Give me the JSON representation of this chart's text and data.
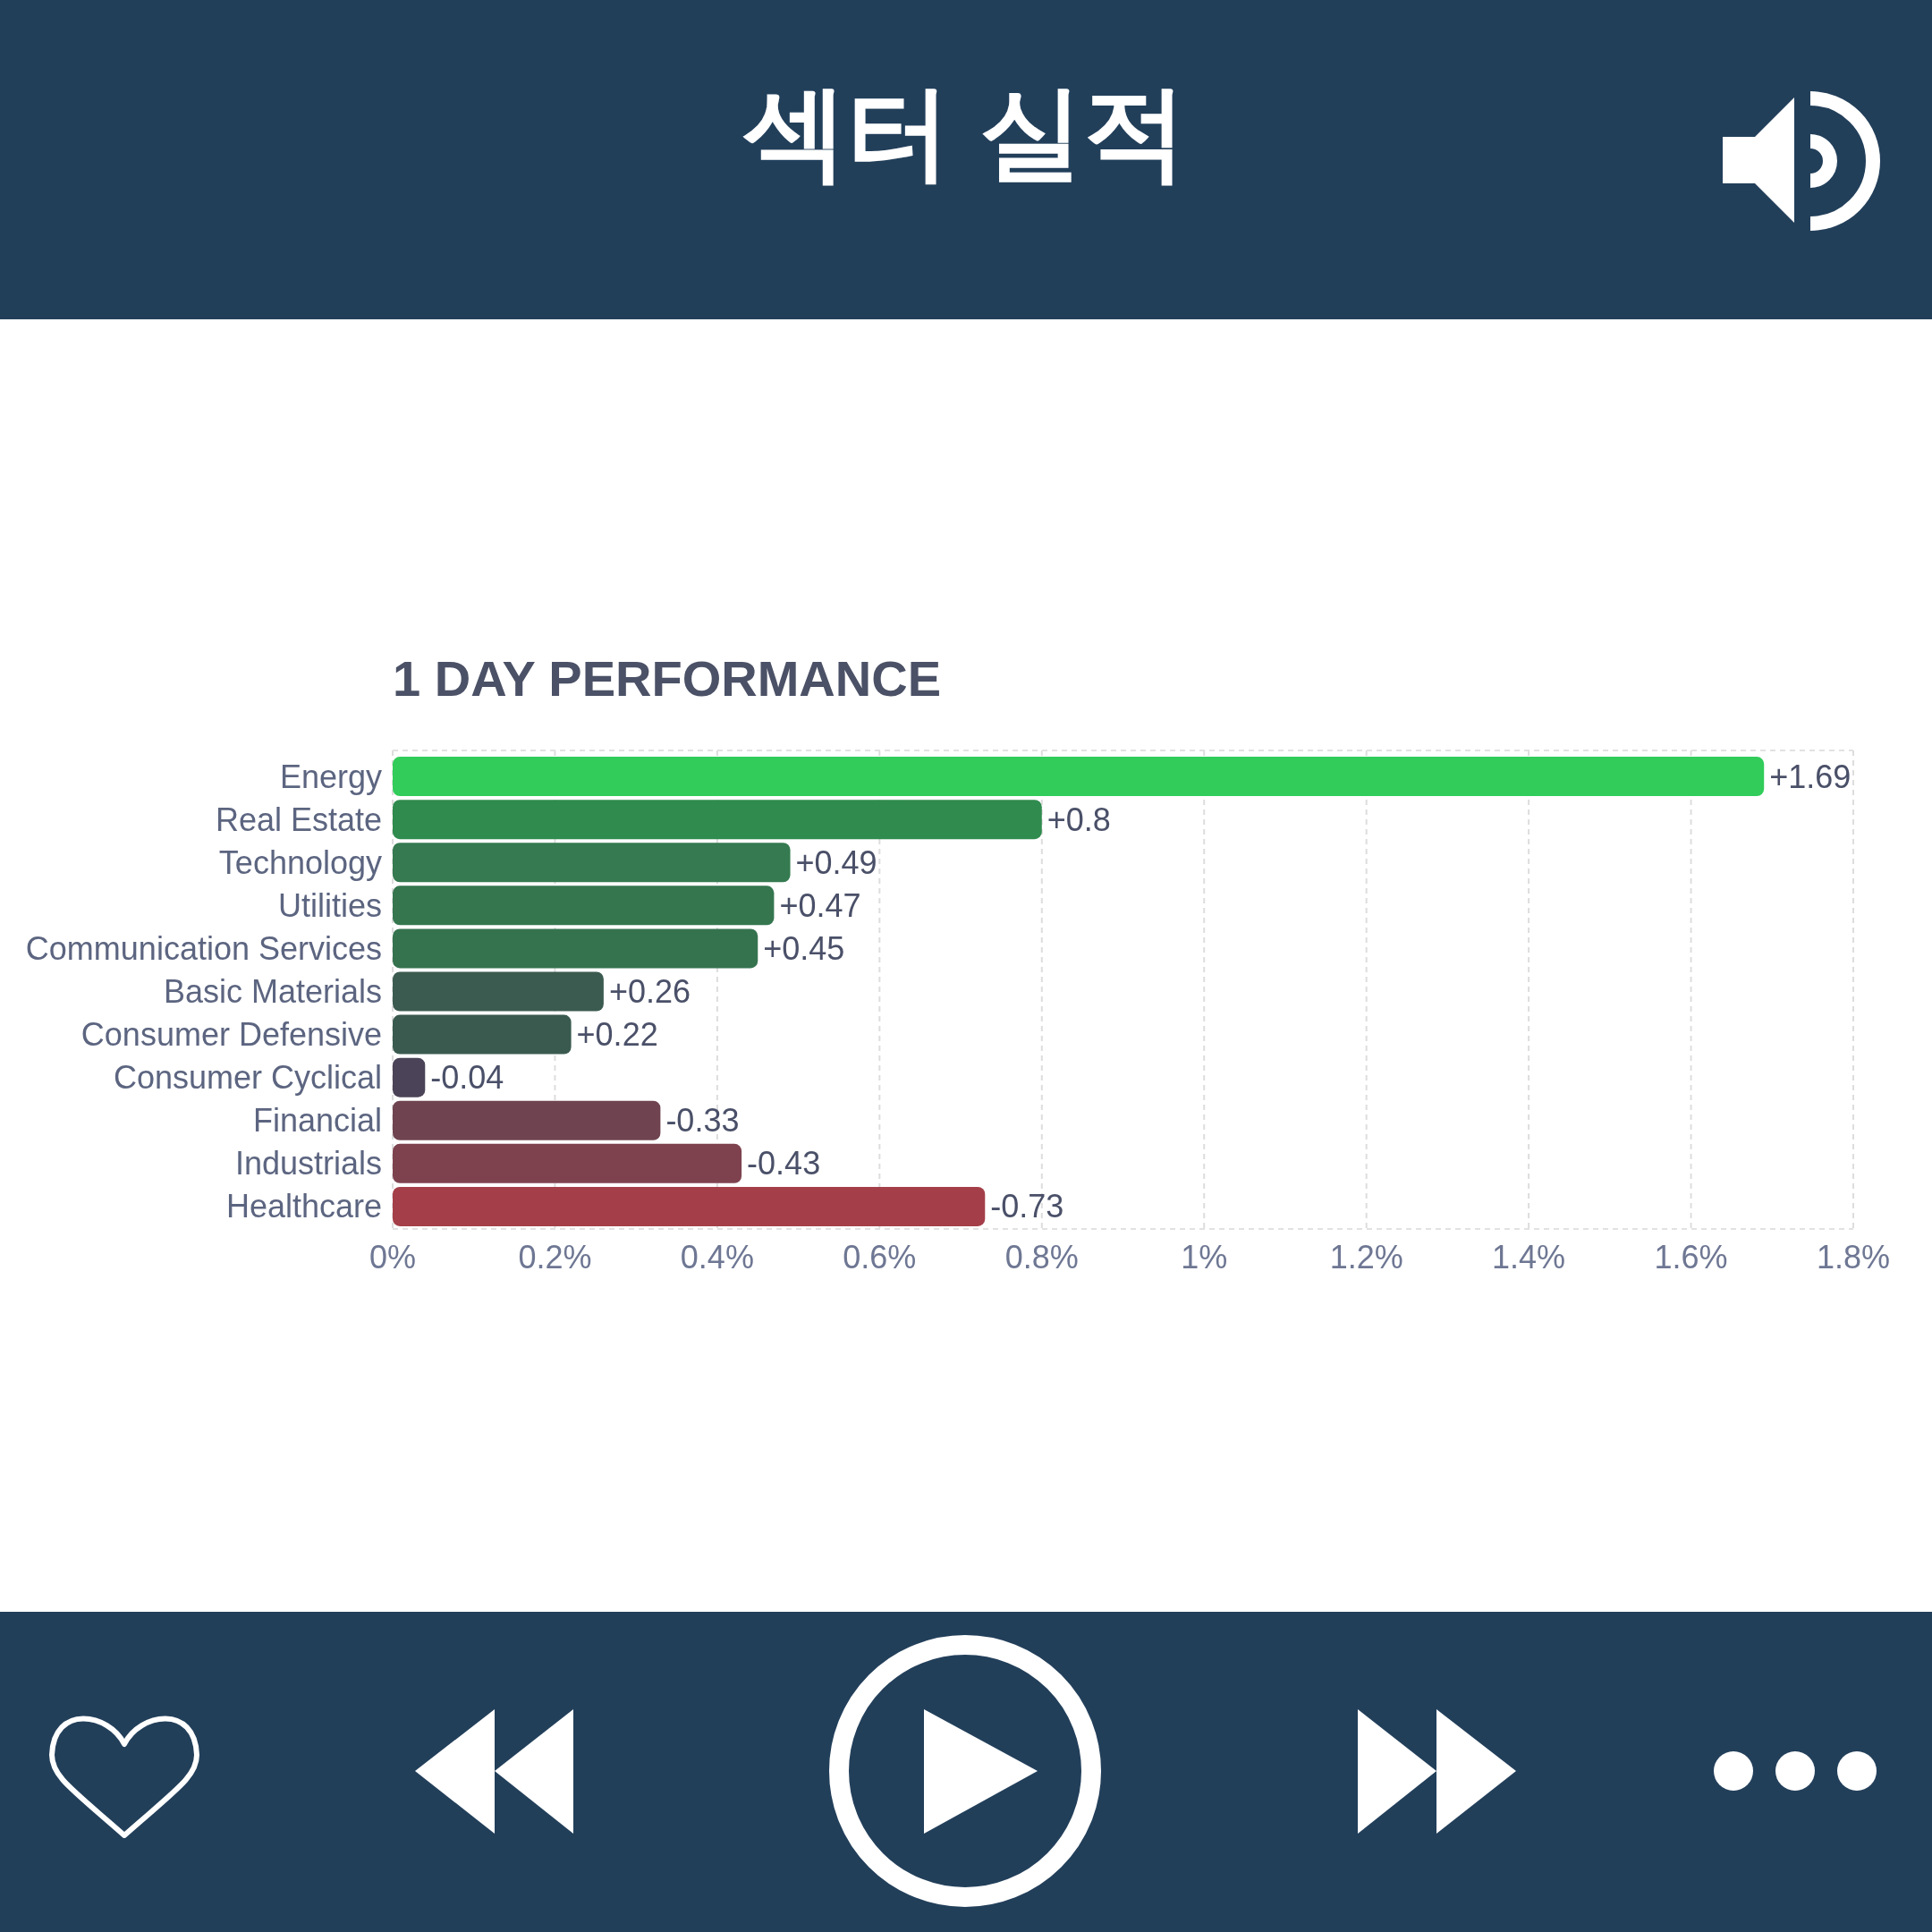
{
  "chart_data": {
    "type": "bar",
    "orientation": "horizontal",
    "title": "섹터 실적",
    "subtitle": "1 DAY PERFORMANCE",
    "categories": [
      "Energy",
      "Real Estate",
      "Technology",
      "Utilities",
      "Communication Services",
      "Basic Materials",
      "Consumer Defensive",
      "Consumer Cyclical",
      "Financial",
      "Industrials",
      "Healthcare"
    ],
    "values": [
      1.69,
      0.8,
      0.49,
      0.47,
      0.45,
      0.26,
      0.22,
      0.04,
      0.33,
      0.43,
      0.73
    ],
    "colors": [
      "#31cc5a",
      "#2f8b4e",
      "#357a50",
      "#35764f",
      "#35734f",
      "#3c5b50",
      "#3a5a4f",
      "#4b4357",
      "#6f4450",
      "#7e424f",
      "#a43f49"
    ],
    "annotations": [
      {
        "text": "+1.69",
        "x": 1.69,
        "y": "Energy"
      },
      {
        "text": "+0.8",
        "x": 0.8,
        "y": "Real Estate"
      },
      {
        "text": "+0.49",
        "x": 0.49,
        "y": "Technology"
      },
      {
        "text": "+0.47",
        "x": 0.47,
        "y": "Utilities"
      },
      {
        "text": "+0.45",
        "x": 0.45,
        "y": "Communication Services"
      },
      {
        "text": "+0.26",
        "x": 0.26,
        "y": "Basic Materials"
      },
      {
        "text": "+0.22",
        "x": 0.22,
        "y": "Consumer Defensive"
      },
      {
        "text": "-0.04",
        "x": 0.04,
        "y": "Consumer Cyclical"
      },
      {
        "text": "-0.33",
        "x": 0.33,
        "y": "Financial"
      },
      {
        "text": "-0.43",
        "x": 0.43,
        "y": "Industrials"
      },
      {
        "text": "-0.73",
        "x": 0.73,
        "y": "Healthcare"
      }
    ],
    "xlim": [
      0,
      1.8
    ],
    "xticks": [
      {
        "value": 0,
        "label": "0%"
      },
      {
        "value": 0.2,
        "label": "0.2%"
      },
      {
        "value": 0.4,
        "label": "0.4%"
      },
      {
        "value": 0.6,
        "label": "0.6%"
      },
      {
        "value": 0.8,
        "label": "0.8%"
      },
      {
        "value": 1,
        "label": "1%"
      },
      {
        "value": 1.2,
        "label": "1.2%"
      },
      {
        "value": 1.4,
        "label": "1.4%"
      },
      {
        "value": 1.6,
        "label": "1.6%"
      },
      {
        "value": 1.8,
        "label": "1.8%"
      }
    ],
    "grid": "x"
  }
}
